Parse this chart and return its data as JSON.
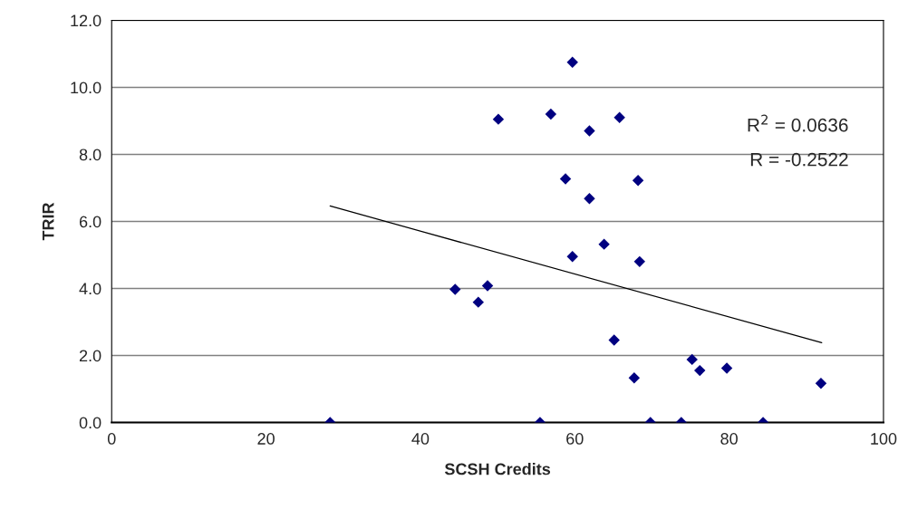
{
  "chart_data": {
    "type": "scatter",
    "xlabel": "SCSH Credits",
    "ylabel": "TRIR",
    "xlim": [
      0,
      100
    ],
    "xticks": [
      0,
      20,
      40,
      60,
      80,
      100
    ],
    "ylim": [
      0,
      12
    ],
    "yticks": [
      {
        "value": 0,
        "label": "0.0"
      },
      {
        "value": 2,
        "label": "2.0"
      },
      {
        "value": 4,
        "label": "4.0"
      },
      {
        "value": 6,
        "label": "6.0"
      },
      {
        "value": 8,
        "label": "8.0"
      },
      {
        "value": 10,
        "label": "10.0"
      },
      {
        "value": 12,
        "label": "12.0"
      }
    ],
    "grid": "y",
    "series": [
      {
        "marker": "diamond",
        "color": "#000080",
        "x": [
          28.3,
          44.5,
          47.5,
          48.7,
          50.1,
          55.5,
          56.9,
          58.8,
          59.7,
          59.7,
          61.9,
          61.9,
          63.8,
          65.1,
          65.8,
          67.7,
          68.2,
          68.4,
          69.8,
          73.8,
          75.2,
          76.2,
          79.7,
          84.4,
          91.9
        ],
        "values": [
          0,
          3.97,
          3.59,
          4.08,
          9.05,
          0,
          9.2,
          7.27,
          10.75,
          4.95,
          8.7,
          6.68,
          5.32,
          2.46,
          9.1,
          1.33,
          7.22,
          4.8,
          0,
          0,
          1.88,
          1.55,
          1.62,
          0,
          1.17
        ]
      },
      {
        "type": "line",
        "color": "#000000",
        "x": [
          28.3,
          92.0
        ],
        "values": [
          6.46,
          2.38
        ]
      }
    ],
    "annotations": [
      "R$^{2}$ = 0.0636",
      "R = -0.2522"
    ]
  }
}
